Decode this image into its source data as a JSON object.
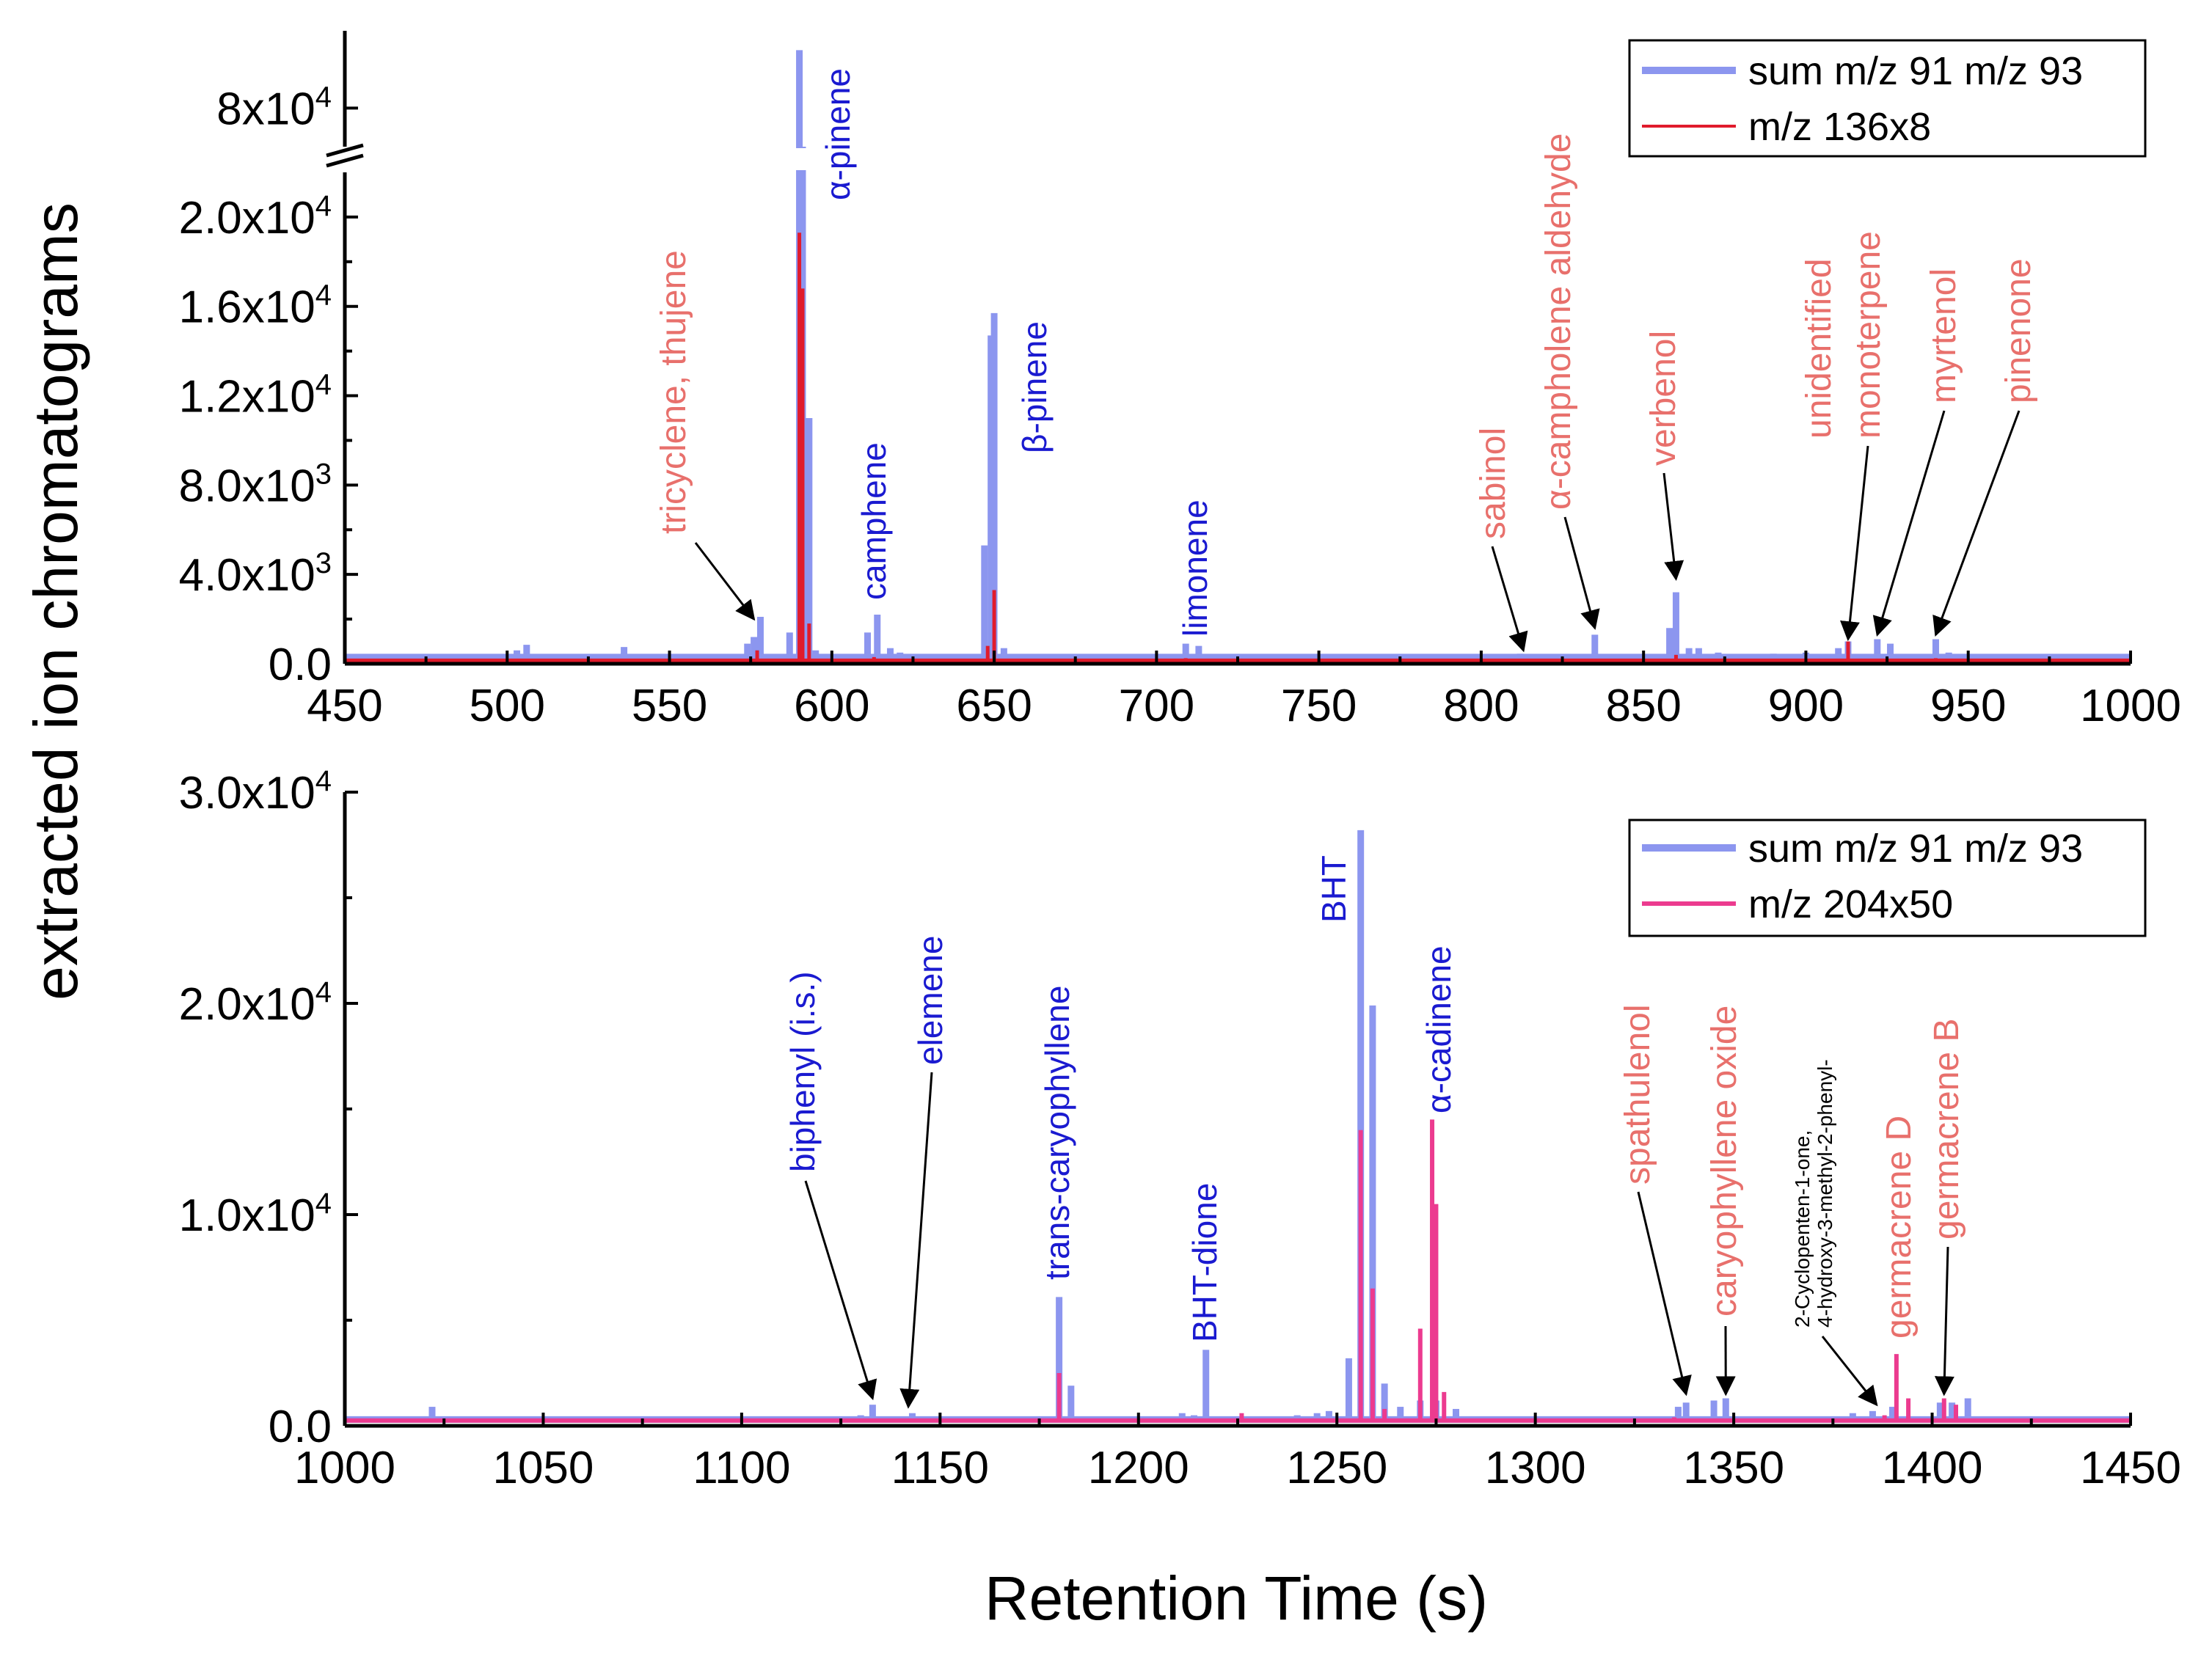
{
  "chart_data": [
    {
      "type": "line",
      "panel": "top",
      "xlabel": "Retention Time (s)",
      "ylabel": "extracted ion chromatograms",
      "xlim": [
        450,
        1000
      ],
      "xticks": [
        "450",
        "500",
        "550",
        "600",
        "650",
        "700",
        "750",
        "800",
        "850",
        "900",
        "950",
        "1000"
      ],
      "xtick_values": [
        450,
        500,
        550,
        600,
        650,
        700,
        750,
        800,
        850,
        900,
        950,
        1000
      ],
      "ylim_lower": [
        0,
        22000
      ],
      "ylim_upper": [
        76000,
        88000
      ],
      "axis_break": true,
      "ytick_values": [
        0,
        4000,
        8000,
        12000,
        16000,
        20000
      ],
      "ytick_mantissa": [
        "0.0",
        "4.0x10",
        "8.0x10",
        "1.2x10",
        "1.6x10",
        "2.0x10"
      ],
      "ytick_exp": [
        "",
        "3",
        "3",
        "4",
        "4",
        "4"
      ],
      "ytick_upper_value": 80000,
      "ytick_upper_mantissa": "8x10",
      "ytick_upper_exp": "4",
      "legend": [
        {
          "name": "sum m/z 91 m/z 93",
          "color": "#8c96ef"
        },
        {
          "name": "m/z 136x8",
          "color": "#e01b2c"
        }
      ],
      "series": [
        {
          "name": "sum m/z 91 m/z 93",
          "color": "#8c96ef",
          "baseline": 300,
          "peaks": [
            [
              503,
              600
            ],
            [
              506,
              850
            ],
            [
              536,
              750
            ],
            [
              557,
              400
            ],
            [
              574,
              900
            ],
            [
              576,
              1200
            ],
            [
              578,
              2100
            ],
            [
              587,
              1400
            ],
            [
              590,
              86000
            ],
            [
              591,
              76000
            ],
            [
              593,
              11000
            ],
            [
              595,
              600
            ],
            [
              611,
              1400
            ],
            [
              614,
              2200
            ],
            [
              618,
              700
            ],
            [
              621,
              500
            ],
            [
              635,
              400
            ],
            [
              647,
              5300
            ],
            [
              649,
              14700
            ],
            [
              650,
              15700
            ],
            [
              653,
              700
            ],
            [
              670,
              300
            ],
            [
              700,
              300
            ],
            [
              709,
              900
            ],
            [
              713,
              800
            ],
            [
              720,
              300
            ],
            [
              760,
              300
            ],
            [
              785,
              350
            ],
            [
              800,
              300
            ],
            [
              812,
              450
            ],
            [
              835,
              1300
            ],
            [
              858,
              1600
            ],
            [
              860,
              3200
            ],
            [
              864,
              700
            ],
            [
              867,
              700
            ],
            [
              873,
              500
            ],
            [
              890,
              450
            ],
            [
              900,
              500
            ],
            [
              910,
              700
            ],
            [
              913,
              1000
            ],
            [
              922,
              1100
            ],
            [
              926,
              900
            ],
            [
              940,
              1100
            ],
            [
              944,
              500
            ],
            [
              960,
              350
            ]
          ]
        },
        {
          "name": "m/z 136x8",
          "color": "#e01b2c",
          "baseline": 150,
          "peaks": [
            [
              577,
              600
            ],
            [
              590,
              19300
            ],
            [
              591,
              16800
            ],
            [
              593,
              1800
            ],
            [
              613,
              300
            ],
            [
              648,
              800
            ],
            [
              650,
              3300
            ],
            [
              709,
              250
            ],
            [
              860,
              400
            ],
            [
              913,
              1000
            ],
            [
              940,
              250
            ]
          ]
        }
      ],
      "annotations": [
        {
          "text": "tricyclene, thujene",
          "color": "red",
          "x": 576,
          "y": 2000
        },
        {
          "text": "α-pinene",
          "color": "blue"
        },
        {
          "text": "camphene",
          "color": "blue"
        },
        {
          "text": "β-pinene",
          "color": "blue"
        },
        {
          "text": "limonene",
          "color": "blue"
        },
        {
          "text": "sabinol",
          "color": "red",
          "x": 813,
          "y": 600
        },
        {
          "text": "α-campholene aldehyde",
          "color": "red",
          "x": 835,
          "y": 1600
        },
        {
          "text": "verbenol",
          "color": "red",
          "x": 860,
          "y": 3800
        },
        {
          "text": "unidentified",
          "color": "red"
        },
        {
          "text": "monoterpene",
          "color": "red",
          "x": 913,
          "y": 1100
        },
        {
          "text": "myrtenol",
          "color": "red",
          "x": 922,
          "y": 1300
        },
        {
          "text": "pinenone",
          "color": "red",
          "x": 940,
          "y": 1300
        }
      ]
    },
    {
      "type": "line",
      "panel": "bottom",
      "xlabel": "Retention Time (s)",
      "ylabel": "extracted ion chromatograms",
      "xlim": [
        1000,
        1450
      ],
      "xticks": [
        "1000",
        "1050",
        "1100",
        "1150",
        "1200",
        "1250",
        "1300",
        "1350",
        "1400",
        "1450"
      ],
      "xtick_values": [
        1000,
        1050,
        1100,
        1150,
        1200,
        1250,
        1300,
        1350,
        1400,
        1450
      ],
      "ylim": [
        0,
        30000
      ],
      "ytick_values": [
        0,
        10000,
        20000,
        30000
      ],
      "ytick_mantissa": [
        "0.0",
        "1.0x10",
        "2.0x10",
        "3.0x10"
      ],
      "ytick_exp": [
        "",
        "4",
        "4",
        "4"
      ],
      "legend": [
        {
          "name": "sum m/z 91 m/z 93",
          "color": "#8c96ef"
        },
        {
          "name": "m/z 204x50",
          "color": "#ec3b8f"
        }
      ],
      "series": [
        {
          "name": "sum m/z 91 m/z 93",
          "color": "#8c96ef",
          "baseline": 300,
          "peaks": [
            [
              1022,
              900
            ],
            [
              1130,
              500
            ],
            [
              1133,
              1000
            ],
            [
              1143,
              600
            ],
            [
              1180,
              6100
            ],
            [
              1183,
              1900
            ],
            [
              1211,
              600
            ],
            [
              1214,
              500
            ],
            [
              1217,
              3600
            ],
            [
              1232,
              400
            ],
            [
              1240,
              500
            ],
            [
              1245,
              600
            ],
            [
              1248,
              700
            ],
            [
              1253,
              3200
            ],
            [
              1256,
              28200
            ],
            [
              1259,
              19900
            ],
            [
              1262,
              2000
            ],
            [
              1266,
              900
            ],
            [
              1271,
              1200
            ],
            [
              1275,
              1200
            ],
            [
              1280,
              800
            ],
            [
              1336,
              900
            ],
            [
              1338,
              1100
            ],
            [
              1345,
              1200
            ],
            [
              1348,
              1300
            ],
            [
              1380,
              600
            ],
            [
              1385,
              700
            ],
            [
              1390,
              900
            ],
            [
              1402,
              1100
            ],
            [
              1405,
              1100
            ],
            [
              1409,
              1300
            ]
          ]
        },
        {
          "name": "m/z 204x50",
          "color": "#ec3b8f",
          "baseline": 250,
          "peaks": [
            [
              1007,
              350
            ],
            [
              1062,
              300
            ],
            [
              1180,
              2500
            ],
            [
              1226,
              600
            ],
            [
              1256,
              14000
            ],
            [
              1259,
              6500
            ],
            [
              1262,
              800
            ],
            [
              1271,
              4600
            ],
            [
              1274,
              14500
            ],
            [
              1275,
              10500
            ],
            [
              1277,
              1600
            ],
            [
              1335,
              400
            ],
            [
              1349,
              300
            ],
            [
              1388,
              500
            ],
            [
              1391,
              3400
            ],
            [
              1394,
              1300
            ],
            [
              1403,
              1300
            ],
            [
              1406,
              1000
            ],
            [
              1420,
              350
            ],
            [
              1437,
              300
            ]
          ]
        }
      ],
      "annotations": [
        {
          "text": "biphenyl (i.s.)",
          "color": "blue",
          "x": 1133,
          "y": 1300
        },
        {
          "text": "elemene",
          "color": "blue",
          "x": 1142,
          "y": 900
        },
        {
          "text": "trans-caryophyllene",
          "color": "blue"
        },
        {
          "text": "BHT-dione",
          "color": "blue"
        },
        {
          "text": "BHT",
          "color": "blue"
        },
        {
          "text": "α-cadinene",
          "color": "blue"
        },
        {
          "text": "spathulenol",
          "color": "red",
          "x": 1338,
          "y": 1500
        },
        {
          "text": "caryophyllene oxide",
          "color": "red",
          "x": 1348,
          "y": 1500
        },
        {
          "text": "2-Cyclopenten-1-one,",
          "color": "black"
        },
        {
          "text": "4-hydroxy-3-methyl-2-phenyl-",
          "color": "black",
          "x": 1386,
          "y": 1000
        },
        {
          "text": "germacrene D",
          "color": "red"
        },
        {
          "text": "germacrene B",
          "color": "red",
          "x": 1403,
          "y": 1500
        }
      ]
    }
  ]
}
